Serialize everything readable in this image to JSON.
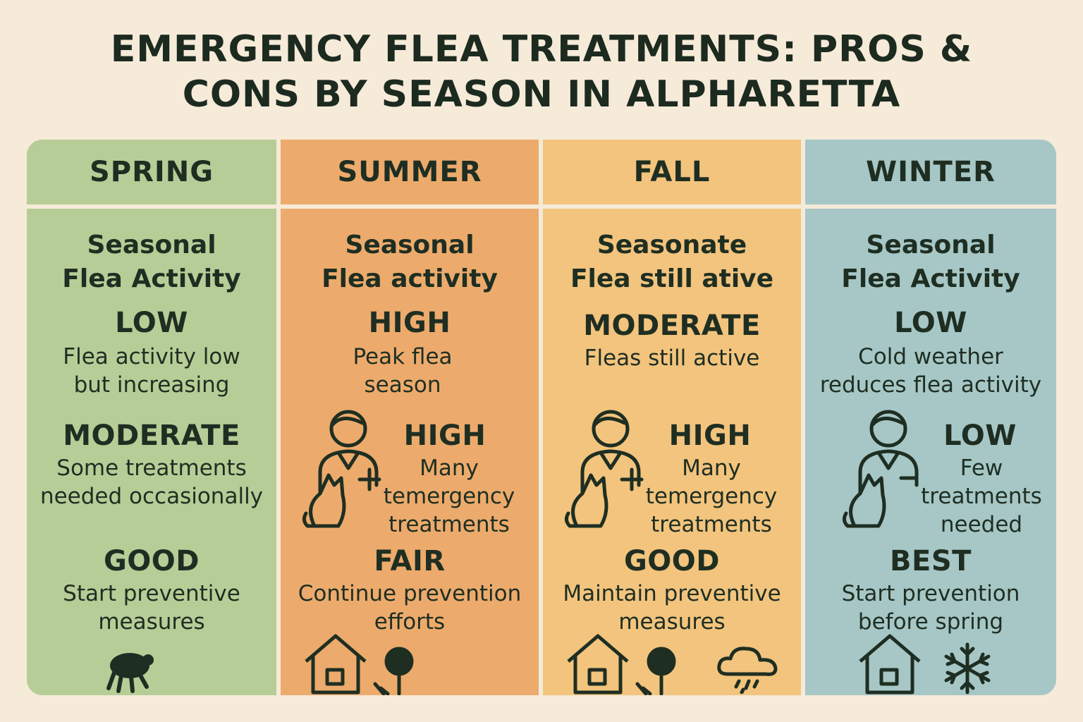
{
  "title": "EMERGENCY FLEA TREATMENTS: PROS &\nCONS BY SEASON IN ALPHARETTA",
  "seasons": [
    {
      "name": "SPRING",
      "activity_heading": "Seasonal\nFlea Activity",
      "activity_level": "LOW",
      "activity_desc": "Flea activity low\nbut increasing",
      "treatment_level": "MODERATE",
      "treatment_desc": "Some treatments\nneeded occasionally",
      "prevention_level": "GOOD",
      "prevention_desc": "Start preventive\nmeasures",
      "icons": [
        "flea-icon"
      ]
    },
    {
      "name": "SUMMER",
      "activity_heading": "Seasonal\nFlea activity",
      "activity_level": "HIGH",
      "activity_desc": "Peak flea\nseason",
      "treatment_level": "HIGH",
      "treatment_desc": "Many\ntemergency\ntreatments",
      "prevention_level": "FAIR",
      "prevention_desc": "Continue prevention\nefforts",
      "icons": [
        "vet-with-cat-icon",
        "house-icon",
        "tree-icon"
      ]
    },
    {
      "name": "FALL",
      "activity_heading": "Seasonate\nFlea still ative",
      "activity_level": "MODERATE",
      "activity_desc": "Fleas still active",
      "treatment_level": "HIGH",
      "treatment_desc": "Many\ntemergency\ntreatments",
      "prevention_level": "GOOD",
      "prevention_desc": "Maintain preventive\nmeasures",
      "icons": [
        "vet-with-cat-icon",
        "house-icon",
        "tree-icon",
        "rain-cloud-icon"
      ]
    },
    {
      "name": "WINTER",
      "activity_heading": "Seasonal\nFlea Activity",
      "activity_level": "LOW",
      "activity_desc": "Cold weather\nreduces flea activity",
      "treatment_level": "LOW",
      "treatment_desc": "Few\ntreatments\nneeded",
      "prevention_level": "BEST",
      "prevention_desc": "Start prevention\nbefore spring",
      "icons": [
        "vet-with-cat-icon",
        "house-icon",
        "snowflake-icon"
      ]
    }
  ],
  "colors": {
    "background": "#f6ead9",
    "spring": "#b7cd97",
    "summer": "#ecab6c",
    "fall": "#f2c47d",
    "winter": "#a6c7c6",
    "text": "#1f2e22"
  }
}
